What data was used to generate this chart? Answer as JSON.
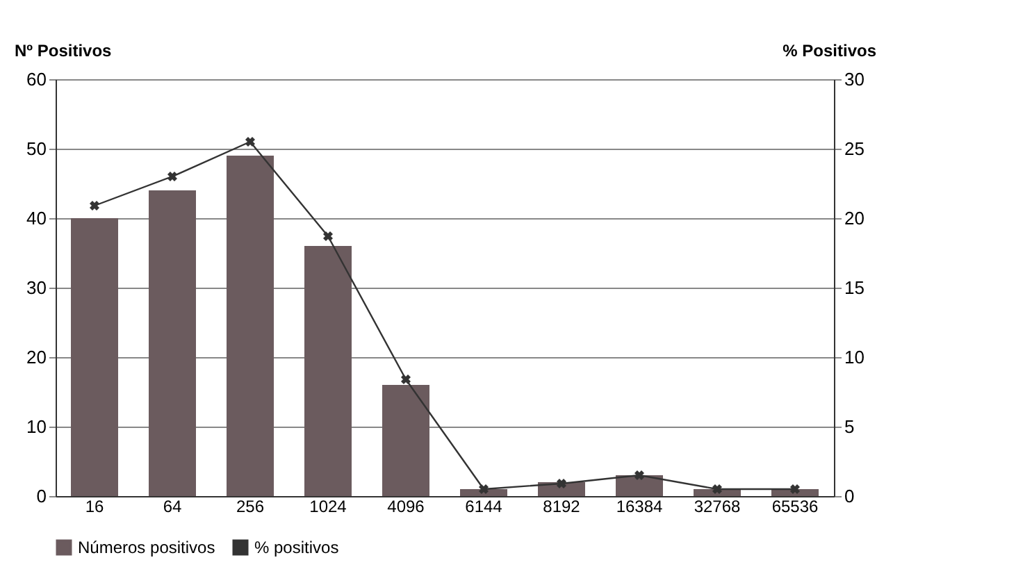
{
  "chart_data": {
    "type": "bar",
    "ylabel": "Nº Positivos",
    "y2label": "% Positivos",
    "categories": [
      "16",
      "64",
      "256",
      "1024",
      "4096",
      "6144",
      "8192",
      "16384",
      "32768",
      "65536"
    ],
    "series": [
      {
        "name": "Números positivos",
        "color": "#6b5b5e",
        "values": [
          40,
          44,
          49,
          36,
          16,
          1,
          2,
          3,
          1,
          1
        ]
      },
      {
        "name": "% positivos",
        "type": "line",
        "axis": "y2",
        "color": "#333333",
        "marker": "cross",
        "values": [
          20.9,
          23,
          25.5,
          18.7,
          8.4,
          0.5,
          0.9,
          1.5,
          0.5,
          0.5
        ]
      }
    ],
    "ylim": [
      0,
      60
    ],
    "yticks": [
      0,
      10,
      20,
      30,
      40,
      50,
      60
    ],
    "y2lim": [
      0,
      30
    ],
    "y2ticks": [
      0,
      5,
      10,
      15,
      20,
      25,
      30
    ],
    "grid": "y",
    "legend": "bottom"
  }
}
